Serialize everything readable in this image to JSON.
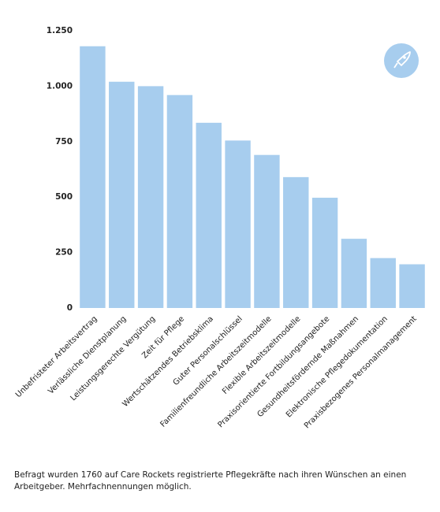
{
  "chart_data": {
    "type": "bar",
    "categories": [
      "Unbefristeter Arbeitsvertrag",
      "Verlässliche Dienstplanung",
      "Leistungsgerechte Vergütung",
      "Zeit für Pflege",
      "Wertschätzendes Betriebsklima",
      "Guter Personalschlüssel",
      "Familienfreundliche Arbeitszeitmodelle",
      "Flexible Arbeitszeitmodelle",
      "Praxisorientierte Fortbildungsangebote",
      "Gesundheitsfördernde Maßnahmen",
      "Elektronische Pflegedokumentation",
      "Praxisbezogenes Personalmanagement"
    ],
    "values": [
      1180,
      1020,
      1000,
      960,
      835,
      755,
      690,
      590,
      497,
      312,
      225,
      197
    ],
    "color": "#a7cdee",
    "ylim": [
      0,
      1250
    ],
    "yticks": [
      0,
      250,
      500,
      750,
      {
        "value": 1000,
        "label": "1.000"
      },
      {
        "value": 1250,
        "label": "1.250"
      }
    ],
    "grid": false,
    "note": "Befragt wurden 1760 auf Care Rockets registrierte Pflegekräfte nach ihren Wünschen an einen Arbeitgeber. Mehrfachnennungen möglich."
  }
}
